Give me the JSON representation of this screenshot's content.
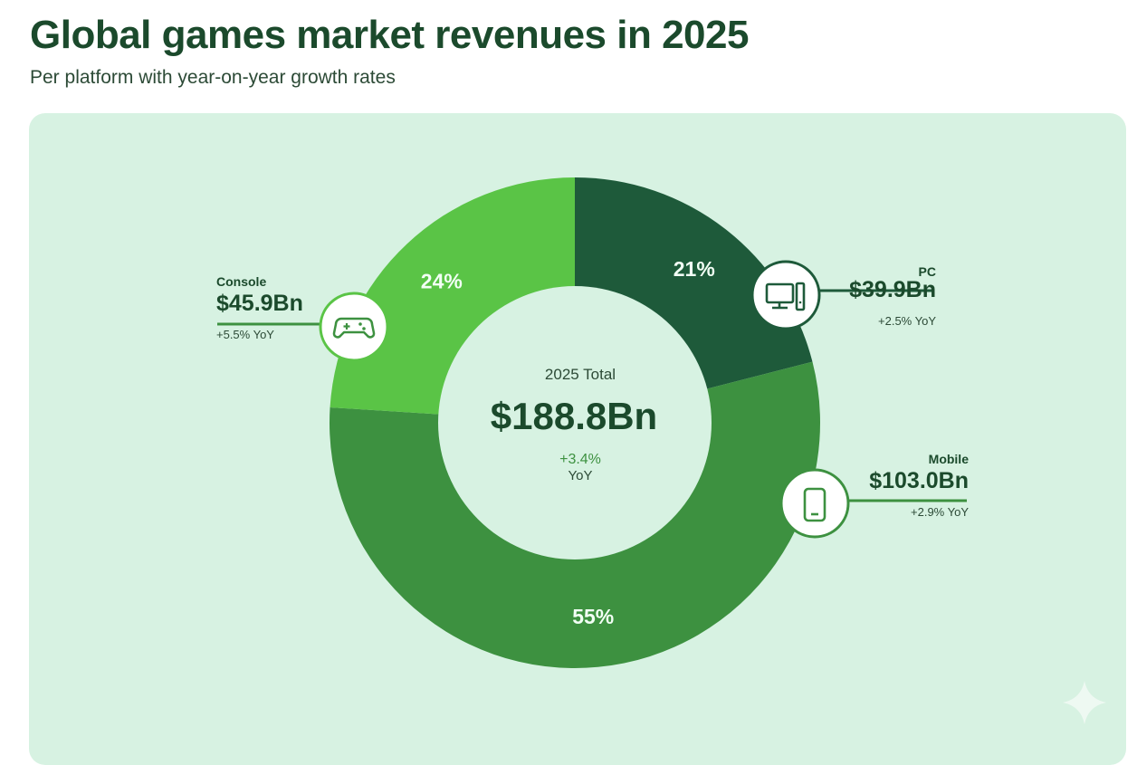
{
  "header": {
    "title": "Global games market revenues in 2025",
    "subtitle": "Per platform with year-on-year growth rates"
  },
  "chart_data": {
    "type": "pie",
    "donut": true,
    "slices": [
      {
        "name": "PC",
        "percent": 21,
        "value_label": "$39.9Bn",
        "yoy": "+2.5% YoY",
        "icon": "desktop-computer-icon",
        "color": "#1e5a3a",
        "pct_label": "21%"
      },
      {
        "name": "Mobile",
        "percent": 55,
        "value_label": "$103.0Bn",
        "yoy": "+2.9% YoY",
        "icon": "smartphone-icon",
        "color": "#3d9140",
        "pct_label": "55%"
      },
      {
        "name": "Console",
        "percent": 24,
        "value_label": "$45.9Bn",
        "yoy": "+5.5% YoY",
        "icon": "gamepad-icon",
        "color": "#5ac446",
        "pct_label": "24%"
      }
    ],
    "center": {
      "label": "2025 Total",
      "value": "$188.8Bn",
      "growth": "+3.4%",
      "growth_unit": "YoY"
    }
  },
  "colors": {
    "background": "#d7f2e2",
    "title": "#1b4a2c",
    "growth": "#3d9140"
  }
}
